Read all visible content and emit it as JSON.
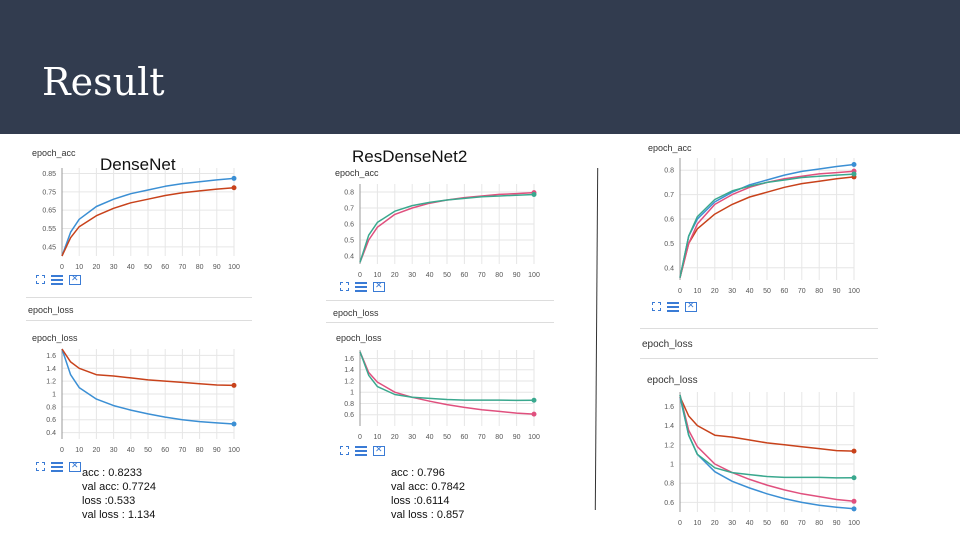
{
  "slide": {
    "title": "Result"
  },
  "densenet": {
    "name": "DenseNet",
    "acc_panel": "epoch_acc",
    "loss_header": "epoch_loss",
    "loss_panel": "epoch_loss",
    "stats": [
      "acc : 0.8233",
      "val acc: 0.7724",
      "loss :0.533",
      "val loss : 1.134"
    ]
  },
  "resdensenet": {
    "name": "ResDenseNet2",
    "acc_panel": "epoch_acc",
    "loss_header": "epoch_loss",
    "loss_panel": "epoch_loss",
    "stats": [
      "acc : 0.796",
      "val acc: 0.7842",
      "loss :0.6114",
      "val loss : 0.857"
    ]
  },
  "combined": {
    "acc_panel": "epoch_acc",
    "loss_header": "epoch_loss",
    "loss_panel": "epoch_loss"
  },
  "colors": {
    "header_bg": "#323c4f",
    "densenet_train": "#3b8fd4",
    "densenet_val": "#c8421b",
    "resdense_train": "#e0507e",
    "resdense_val": "#3aa88e"
  },
  "icons": [
    "expand-icon",
    "list-icon",
    "fit-icon"
  ],
  "chart_data": [
    {
      "type": "line",
      "id": "densenet_acc",
      "title": "epoch_acc",
      "xlim": [
        0,
        100
      ],
      "ylim": [
        0.4,
        0.88
      ],
      "xticks": [
        0,
        10,
        20,
        30,
        40,
        50,
        60,
        70,
        80,
        90,
        100
      ],
      "yticks": [
        0.45,
        0.55,
        0.65,
        0.75,
        0.85
      ],
      "ytick_labels": [
        "0.45",
        "0.55",
        "0.65",
        "0.75",
        "0.85"
      ],
      "series": [
        {
          "color": "#3b8fd4",
          "x": [
            0,
            5,
            10,
            20,
            30,
            40,
            50,
            60,
            70,
            80,
            90,
            100
          ],
          "y": [
            0.4,
            0.53,
            0.6,
            0.67,
            0.71,
            0.74,
            0.76,
            0.78,
            0.795,
            0.805,
            0.815,
            0.8233
          ]
        },
        {
          "color": "#c8421b",
          "x": [
            0,
            5,
            10,
            20,
            30,
            40,
            50,
            60,
            70,
            80,
            90,
            100
          ],
          "y": [
            0.4,
            0.5,
            0.56,
            0.62,
            0.66,
            0.69,
            0.71,
            0.73,
            0.745,
            0.755,
            0.765,
            0.7724
          ]
        }
      ]
    },
    {
      "type": "line",
      "id": "densenet_loss",
      "title": "epoch_loss",
      "xlim": [
        0,
        100
      ],
      "ylim": [
        0.3,
        1.7
      ],
      "xticks": [
        0,
        10,
        20,
        30,
        40,
        50,
        60,
        70,
        80,
        90,
        100
      ],
      "yticks": [
        0.4,
        0.6,
        0.8,
        1,
        1.2,
        1.4,
        1.6
      ],
      "ytick_labels": [
        "0.4",
        "0.6",
        "0.8",
        "1",
        "1.2",
        "1.4",
        "1.6"
      ],
      "series": [
        {
          "color": "#3b8fd4",
          "x": [
            0,
            5,
            10,
            20,
            30,
            40,
            50,
            60,
            70,
            80,
            90,
            100
          ],
          "y": [
            1.7,
            1.3,
            1.1,
            0.92,
            0.82,
            0.75,
            0.69,
            0.64,
            0.6,
            0.57,
            0.55,
            0.533
          ]
        },
        {
          "color": "#c8421b",
          "x": [
            0,
            5,
            10,
            20,
            30,
            40,
            50,
            60,
            70,
            80,
            90,
            100
          ],
          "y": [
            1.7,
            1.5,
            1.4,
            1.3,
            1.28,
            1.25,
            1.22,
            1.2,
            1.18,
            1.16,
            1.14,
            1.134
          ]
        }
      ]
    },
    {
      "type": "line",
      "id": "resdense_acc",
      "title": "epoch_acc",
      "xlim": [
        0,
        100
      ],
      "ylim": [
        0.35,
        0.85
      ],
      "xticks": [
        0,
        10,
        20,
        30,
        40,
        50,
        60,
        70,
        80,
        90,
        100
      ],
      "yticks": [
        0.4,
        0.5,
        0.6,
        0.7,
        0.8
      ],
      "ytick_labels": [
        "0.4",
        "0.5",
        "0.6",
        "0.7",
        "0.8"
      ],
      "series": [
        {
          "color": "#e0507e",
          "x": [
            0,
            5,
            10,
            20,
            30,
            40,
            50,
            60,
            70,
            80,
            90,
            100
          ],
          "y": [
            0.36,
            0.5,
            0.58,
            0.66,
            0.7,
            0.73,
            0.75,
            0.765,
            0.775,
            0.785,
            0.79,
            0.796
          ]
        },
        {
          "color": "#3aa88e",
          "x": [
            0,
            5,
            10,
            20,
            30,
            40,
            50,
            60,
            70,
            80,
            90,
            100
          ],
          "y": [
            0.36,
            0.53,
            0.61,
            0.68,
            0.715,
            0.735,
            0.75,
            0.76,
            0.77,
            0.775,
            0.78,
            0.7842
          ]
        }
      ]
    },
    {
      "type": "line",
      "id": "resdense_loss",
      "title": "epoch_loss",
      "xlim": [
        0,
        100
      ],
      "ylim": [
        0.4,
        1.75
      ],
      "xticks": [
        0,
        10,
        20,
        30,
        40,
        50,
        60,
        70,
        80,
        90,
        100
      ],
      "yticks": [
        0.6,
        0.8,
        1,
        1.2,
        1.4,
        1.6
      ],
      "ytick_labels": [
        "0.6",
        "0.8",
        "1",
        "1.2",
        "1.4",
        "1.6"
      ],
      "series": [
        {
          "color": "#e0507e",
          "x": [
            0,
            5,
            10,
            20,
            30,
            40,
            50,
            60,
            70,
            80,
            90,
            100
          ],
          "y": [
            1.72,
            1.35,
            1.18,
            1.0,
            0.91,
            0.84,
            0.78,
            0.73,
            0.69,
            0.66,
            0.63,
            0.6114
          ]
        },
        {
          "color": "#3aa88e",
          "x": [
            0,
            5,
            10,
            20,
            30,
            40,
            50,
            60,
            70,
            80,
            90,
            100
          ],
          "y": [
            1.72,
            1.3,
            1.1,
            0.96,
            0.91,
            0.89,
            0.87,
            0.86,
            0.86,
            0.86,
            0.855,
            0.857
          ]
        }
      ]
    },
    {
      "type": "line",
      "id": "combined_acc",
      "title": "epoch_acc",
      "xlim": [
        0,
        100
      ],
      "ylim": [
        0.35,
        0.85
      ],
      "xticks": [
        0,
        10,
        20,
        30,
        40,
        50,
        60,
        70,
        80,
        90,
        100
      ],
      "yticks": [
        0.4,
        0.5,
        0.6,
        0.7,
        0.8
      ],
      "ytick_labels": [
        "0.4",
        "0.5",
        "0.6",
        "0.7",
        "0.8"
      ],
      "series": [
        {
          "color": "#3b8fd4",
          "x": [
            0,
            5,
            10,
            20,
            30,
            40,
            50,
            60,
            70,
            80,
            90,
            100
          ],
          "y": [
            0.36,
            0.53,
            0.6,
            0.67,
            0.71,
            0.74,
            0.76,
            0.78,
            0.795,
            0.805,
            0.815,
            0.8233
          ]
        },
        {
          "color": "#c8421b",
          "x": [
            0,
            5,
            10,
            20,
            30,
            40,
            50,
            60,
            70,
            80,
            90,
            100
          ],
          "y": [
            0.36,
            0.5,
            0.56,
            0.62,
            0.66,
            0.69,
            0.71,
            0.73,
            0.745,
            0.755,
            0.765,
            0.7724
          ]
        },
        {
          "color": "#e0507e",
          "x": [
            0,
            5,
            10,
            20,
            30,
            40,
            50,
            60,
            70,
            80,
            90,
            100
          ],
          "y": [
            0.36,
            0.5,
            0.58,
            0.66,
            0.7,
            0.73,
            0.75,
            0.765,
            0.775,
            0.785,
            0.79,
            0.796
          ]
        },
        {
          "color": "#3aa88e",
          "x": [
            0,
            5,
            10,
            20,
            30,
            40,
            50,
            60,
            70,
            80,
            90,
            100
          ],
          "y": [
            0.36,
            0.53,
            0.61,
            0.68,
            0.715,
            0.735,
            0.75,
            0.76,
            0.77,
            0.775,
            0.78,
            0.7842
          ]
        }
      ]
    },
    {
      "type": "line",
      "id": "combined_loss",
      "title": "epoch_loss",
      "xlim": [
        0,
        100
      ],
      "ylim": [
        0.5,
        1.75
      ],
      "xticks": [
        0,
        10,
        20,
        30,
        40,
        50,
        60,
        70,
        80,
        90,
        100
      ],
      "yticks": [
        0.6,
        0.8,
        1,
        1.2,
        1.4,
        1.6
      ],
      "ytick_labels": [
        "0.6",
        "0.8",
        "1",
        "1.2",
        "1.4",
        "1.6"
      ],
      "series": [
        {
          "color": "#3b8fd4",
          "x": [
            0,
            5,
            10,
            20,
            30,
            40,
            50,
            60,
            70,
            80,
            90,
            100
          ],
          "y": [
            1.7,
            1.3,
            1.1,
            0.92,
            0.82,
            0.75,
            0.69,
            0.64,
            0.6,
            0.57,
            0.55,
            0.533
          ]
        },
        {
          "color": "#c8421b",
          "x": [
            0,
            5,
            10,
            20,
            30,
            40,
            50,
            60,
            70,
            80,
            90,
            100
          ],
          "y": [
            1.7,
            1.5,
            1.4,
            1.3,
            1.28,
            1.25,
            1.22,
            1.2,
            1.18,
            1.16,
            1.14,
            1.134
          ]
        },
        {
          "color": "#e0507e",
          "x": [
            0,
            5,
            10,
            20,
            30,
            40,
            50,
            60,
            70,
            80,
            90,
            100
          ],
          "y": [
            1.72,
            1.35,
            1.18,
            1.0,
            0.91,
            0.84,
            0.78,
            0.73,
            0.69,
            0.66,
            0.63,
            0.6114
          ]
        },
        {
          "color": "#3aa88e",
          "x": [
            0,
            5,
            10,
            20,
            30,
            40,
            50,
            60,
            70,
            80,
            90,
            100
          ],
          "y": [
            1.72,
            1.3,
            1.1,
            0.96,
            0.91,
            0.89,
            0.87,
            0.86,
            0.86,
            0.86,
            0.855,
            0.857
          ]
        }
      ]
    }
  ]
}
